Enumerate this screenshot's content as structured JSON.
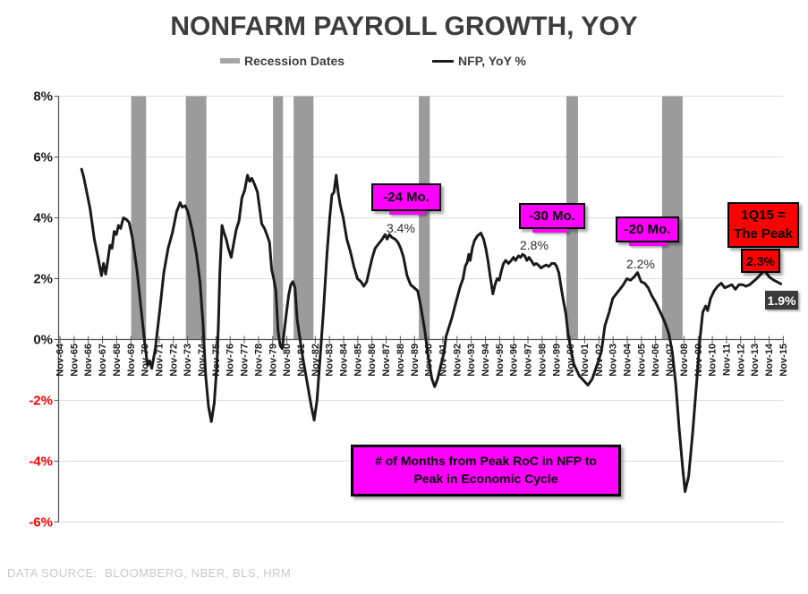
{
  "title": "NONFARM PAYROLL GROWTH, YOY",
  "legend": {
    "recession_label": "Recession Dates",
    "line_label": "NFP, YoY %"
  },
  "footer": {
    "source": "DATA SOURCE:  BLOOMBERG, NBER, BLS, HRM"
  },
  "annotations": {
    "minus24": {
      "label": "-24 Mo.",
      "value_label": "3.4%"
    },
    "minus30": {
      "label": "-30 Mo.",
      "value_label": "2.8%"
    },
    "minus20": {
      "label": "-20 Mo.",
      "value_label": "2.2%"
    },
    "peak": {
      "line1": "1Q15 =",
      "line2": "The Peak",
      "value_label": "2.3%",
      "end_label": "1.9%"
    },
    "note": {
      "line1": "# of Months from Peak RoC in NFP to",
      "line2": "Peak in Economic Cycle"
    }
  },
  "colors": {
    "magenta": "#FF00FF",
    "red": "#FF0000",
    "recession_gray": "#9B9B9B",
    "line": "#1A1A1A",
    "grid": "#DCDCDC",
    "axis": "#595959",
    "title_gray": "#3D3D3D",
    "source_gray": "#C9C9C9",
    "dark_label_bg": "#3B3B3B",
    "negative_axis_label": "#FF0000"
  },
  "chart_data": {
    "type": "line",
    "title": "NONFARM PAYROLL GROWTH, YOY",
    "xlabel": "",
    "ylabel": "",
    "ylim": [
      -6,
      8
    ],
    "y_ticks": [
      8,
      6,
      4,
      2,
      0,
      -2,
      -4,
      -6
    ],
    "y_tick_labels": [
      "8%",
      "6%",
      "4%",
      "2%",
      "0%",
      "-2%",
      "-4%",
      "-6%"
    ],
    "grid": "horizontal",
    "legend_position": "top",
    "x_range_years": [
      1964.875,
      2015.875
    ],
    "x_labels": [
      "Nov-64",
      "Nov-65",
      "Nov-66",
      "Nov-67",
      "Nov-68",
      "Nov-69",
      "Nov-70",
      "Nov-71",
      "Nov-72",
      "Nov-73",
      "Nov-74",
      "Nov-75",
      "Nov-76",
      "Nov-77",
      "Nov-78",
      "Nov-79",
      "Nov-80",
      "Nov-81",
      "Nov-82",
      "Nov-83",
      "Nov-84",
      "Nov-85",
      "Nov-86",
      "Nov-87",
      "Nov-88",
      "Nov-89",
      "Nov-90",
      "Nov-91",
      "Nov-92",
      "Nov-93",
      "Nov-94",
      "Nov-95",
      "Nov-96",
      "Nov-97",
      "Nov-98",
      "Nov-99",
      "Nov-00",
      "Nov-01",
      "Nov-02",
      "Nov-03",
      "Nov-04",
      "Nov-05",
      "Nov-06",
      "Nov-07",
      "Nov-08",
      "Nov-09",
      "Nov-10",
      "Nov-11",
      "Nov-12",
      "Nov-13",
      "Nov-14",
      "Nov-15"
    ],
    "recessions": [
      [
        1969.9,
        1970.95
      ],
      [
        1973.75,
        1975.2
      ],
      [
        1979.9,
        1980.6
      ],
      [
        1981.35,
        1982.75
      ],
      [
        1990.18,
        1990.95
      ],
      [
        2000.58,
        2001.4
      ],
      [
        2007.33,
        2008.78
      ]
    ],
    "series": [
      {
        "name": "NFP, YoY %",
        "points": [
          [
            1966.4,
            5.6
          ],
          [
            1966.55,
            5.35
          ],
          [
            1966.7,
            5.0
          ],
          [
            1967.0,
            4.3
          ],
          [
            1967.3,
            3.3
          ],
          [
            1967.6,
            2.6
          ],
          [
            1967.8,
            2.1
          ],
          [
            1967.95,
            2.5
          ],
          [
            1968.1,
            2.15
          ],
          [
            1968.25,
            2.6
          ],
          [
            1968.4,
            3.1
          ],
          [
            1968.55,
            3.0
          ],
          [
            1968.7,
            3.55
          ],
          [
            1968.85,
            3.45
          ],
          [
            1969.0,
            3.75
          ],
          [
            1969.15,
            3.65
          ],
          [
            1969.35,
            4.0
          ],
          [
            1969.55,
            3.95
          ],
          [
            1969.75,
            3.85
          ],
          [
            1970.0,
            3.3
          ],
          [
            1970.3,
            2.3
          ],
          [
            1970.6,
            1.0
          ],
          [
            1970.85,
            -0.1
          ],
          [
            1971.05,
            -0.85
          ],
          [
            1971.2,
            -0.7
          ],
          [
            1971.35,
            -0.95
          ],
          [
            1971.6,
            -0.3
          ],
          [
            1971.9,
            0.9
          ],
          [
            1972.2,
            2.2
          ],
          [
            1972.5,
            3.0
          ],
          [
            1972.8,
            3.5
          ],
          [
            1973.1,
            4.2
          ],
          [
            1973.35,
            4.5
          ],
          [
            1973.5,
            4.35
          ],
          [
            1973.7,
            4.4
          ],
          [
            1973.9,
            4.2
          ],
          [
            1974.2,
            3.6
          ],
          [
            1974.5,
            2.8
          ],
          [
            1974.75,
            1.9
          ],
          [
            1974.95,
            0.6
          ],
          [
            1975.15,
            -1.2
          ],
          [
            1975.35,
            -2.2
          ],
          [
            1975.55,
            -2.7
          ],
          [
            1975.75,
            -2.1
          ],
          [
            1975.95,
            -0.8
          ],
          [
            1976.05,
            0.5
          ],
          [
            1976.15,
            2.2
          ],
          [
            1976.3,
            3.75
          ],
          [
            1976.45,
            3.5
          ],
          [
            1976.6,
            3.3
          ],
          [
            1976.75,
            3.0
          ],
          [
            1976.95,
            2.7
          ],
          [
            1977.1,
            3.1
          ],
          [
            1977.3,
            3.6
          ],
          [
            1977.5,
            3.9
          ],
          [
            1977.7,
            4.65
          ],
          [
            1977.9,
            4.9
          ],
          [
            1978.1,
            5.4
          ],
          [
            1978.25,
            5.2
          ],
          [
            1978.4,
            5.3
          ],
          [
            1978.6,
            5.1
          ],
          [
            1978.8,
            4.85
          ],
          [
            1979.1,
            3.8
          ],
          [
            1979.3,
            3.65
          ],
          [
            1979.5,
            3.4
          ],
          [
            1979.65,
            3.2
          ],
          [
            1979.8,
            2.3
          ],
          [
            1979.95,
            2.0
          ],
          [
            1980.1,
            1.6
          ],
          [
            1980.25,
            0.3
          ],
          [
            1980.4,
            -0.2
          ],
          [
            1980.55,
            -0.3
          ],
          [
            1980.7,
            0.3
          ],
          [
            1980.85,
            0.9
          ],
          [
            1981.0,
            1.45
          ],
          [
            1981.15,
            1.8
          ],
          [
            1981.3,
            1.9
          ],
          [
            1981.45,
            1.7
          ],
          [
            1981.6,
            0.65
          ],
          [
            1981.8,
            0.0
          ],
          [
            1982.0,
            -0.6
          ],
          [
            1982.3,
            -1.4
          ],
          [
            1982.6,
            -2.2
          ],
          [
            1982.8,
            -2.65
          ],
          [
            1983.0,
            -2.0
          ],
          [
            1983.2,
            -0.7
          ],
          [
            1983.45,
            0.9
          ],
          [
            1983.7,
            2.8
          ],
          [
            1983.9,
            4.0
          ],
          [
            1984.05,
            4.75
          ],
          [
            1984.2,
            4.85
          ],
          [
            1984.35,
            5.4
          ],
          [
            1984.5,
            4.8
          ],
          [
            1984.65,
            4.4
          ],
          [
            1984.85,
            4.0
          ],
          [
            1985.1,
            3.3
          ],
          [
            1985.35,
            2.9
          ],
          [
            1985.6,
            2.4
          ],
          [
            1985.85,
            2.0
          ],
          [
            1986.1,
            1.9
          ],
          [
            1986.3,
            1.75
          ],
          [
            1986.5,
            1.9
          ],
          [
            1986.7,
            2.3
          ],
          [
            1986.9,
            2.7
          ],
          [
            1987.1,
            3.0
          ],
          [
            1987.35,
            3.15
          ],
          [
            1987.6,
            3.3
          ],
          [
            1987.8,
            3.45
          ],
          [
            1987.95,
            3.3
          ],
          [
            1988.1,
            3.45
          ],
          [
            1988.3,
            3.35
          ],
          [
            1988.5,
            3.3
          ],
          [
            1988.7,
            3.2
          ],
          [
            1988.9,
            3.0
          ],
          [
            1989.1,
            2.7
          ],
          [
            1989.35,
            2.1
          ],
          [
            1989.6,
            1.8
          ],
          [
            1989.85,
            1.7
          ],
          [
            1990.1,
            1.6
          ],
          [
            1990.35,
            1.0
          ],
          [
            1990.6,
            0.3
          ],
          [
            1990.85,
            -0.6
          ],
          [
            1991.1,
            -1.3
          ],
          [
            1991.3,
            -1.55
          ],
          [
            1991.5,
            -1.3
          ],
          [
            1991.75,
            -0.8
          ],
          [
            1991.95,
            -0.45
          ],
          [
            1992.1,
            0.1
          ],
          [
            1992.3,
            0.4
          ],
          [
            1992.5,
            0.7
          ],
          [
            1992.7,
            1.05
          ],
          [
            1992.9,
            1.4
          ],
          [
            1993.1,
            1.75
          ],
          [
            1993.3,
            2.0
          ],
          [
            1993.45,
            2.4
          ],
          [
            1993.6,
            2.55
          ],
          [
            1993.7,
            2.8
          ],
          [
            1993.8,
            2.6
          ],
          [
            1993.95,
            3.0
          ],
          [
            1994.1,
            3.25
          ],
          [
            1994.3,
            3.4
          ],
          [
            1994.55,
            3.5
          ],
          [
            1994.75,
            3.3
          ],
          [
            1994.9,
            3.0
          ],
          [
            1995.05,
            2.6
          ],
          [
            1995.2,
            2.1
          ],
          [
            1995.4,
            1.5
          ],
          [
            1995.55,
            1.8
          ],
          [
            1995.7,
            2.0
          ],
          [
            1995.85,
            1.95
          ],
          [
            1996.0,
            2.25
          ],
          [
            1996.15,
            2.5
          ],
          [
            1996.3,
            2.6
          ],
          [
            1996.5,
            2.5
          ],
          [
            1996.7,
            2.6
          ],
          [
            1996.85,
            2.7
          ],
          [
            1997.0,
            2.6
          ],
          [
            1997.2,
            2.75
          ],
          [
            1997.35,
            2.7
          ],
          [
            1997.5,
            2.8
          ],
          [
            1997.65,
            2.75
          ],
          [
            1997.8,
            2.6
          ],
          [
            1997.95,
            2.7
          ],
          [
            1998.1,
            2.6
          ],
          [
            1998.3,
            2.45
          ],
          [
            1998.45,
            2.5
          ],
          [
            1998.6,
            2.45
          ],
          [
            1998.8,
            2.35
          ],
          [
            1998.95,
            2.4
          ],
          [
            1999.15,
            2.45
          ],
          [
            1999.35,
            2.4
          ],
          [
            1999.55,
            2.5
          ],
          [
            1999.75,
            2.5
          ],
          [
            1999.9,
            2.4
          ],
          [
            2000.05,
            2.2
          ],
          [
            2000.2,
            1.75
          ],
          [
            2000.4,
            1.2
          ],
          [
            2000.55,
            0.85
          ],
          [
            2000.7,
            0.2
          ],
          [
            2000.85,
            -0.2
          ],
          [
            2001.1,
            -0.8
          ],
          [
            2001.5,
            -1.2
          ],
          [
            2001.8,
            -1.35
          ],
          [
            2002.1,
            -1.5
          ],
          [
            2002.4,
            -1.3
          ],
          [
            2002.7,
            -0.9
          ],
          [
            2003.05,
            -0.4
          ],
          [
            2003.3,
            0.45
          ],
          [
            2003.6,
            0.9
          ],
          [
            2003.85,
            1.35
          ],
          [
            2004.1,
            1.5
          ],
          [
            2004.35,
            1.65
          ],
          [
            2004.6,
            1.8
          ],
          [
            2004.85,
            2.0
          ],
          [
            2005.1,
            1.95
          ],
          [
            2005.35,
            2.05
          ],
          [
            2005.6,
            2.2
          ],
          [
            2005.85,
            1.9
          ],
          [
            2006.1,
            1.85
          ],
          [
            2006.35,
            1.7
          ],
          [
            2006.6,
            1.45
          ],
          [
            2006.9,
            1.2
          ],
          [
            2007.15,
            0.95
          ],
          [
            2007.5,
            0.6
          ],
          [
            2007.8,
            0.2
          ],
          [
            2008.05,
            -0.4
          ],
          [
            2008.3,
            -1.5
          ],
          [
            2008.55,
            -3.0
          ],
          [
            2008.8,
            -4.3
          ],
          [
            2008.95,
            -5.0
          ],
          [
            2009.2,
            -4.5
          ],
          [
            2009.5,
            -3.0
          ],
          [
            2009.8,
            -1.2
          ],
          [
            2010.0,
            0.0
          ],
          [
            2010.2,
            0.9
          ],
          [
            2010.4,
            1.1
          ],
          [
            2010.55,
            0.95
          ],
          [
            2010.75,
            1.35
          ],
          [
            2011.0,
            1.6
          ],
          [
            2011.25,
            1.75
          ],
          [
            2011.5,
            1.85
          ],
          [
            2011.75,
            1.7
          ],
          [
            2012.0,
            1.75
          ],
          [
            2012.25,
            1.8
          ],
          [
            2012.5,
            1.65
          ],
          [
            2012.75,
            1.8
          ],
          [
            2013.0,
            1.8
          ],
          [
            2013.25,
            1.75
          ],
          [
            2013.5,
            1.8
          ],
          [
            2013.75,
            1.9
          ],
          [
            2014.0,
            2.0
          ],
          [
            2014.3,
            2.15
          ],
          [
            2014.55,
            2.27
          ],
          [
            2014.9,
            2.05
          ],
          [
            2015.2,
            1.95
          ],
          [
            2015.5,
            1.88
          ],
          [
            2015.7,
            1.83
          ]
        ]
      }
    ]
  }
}
